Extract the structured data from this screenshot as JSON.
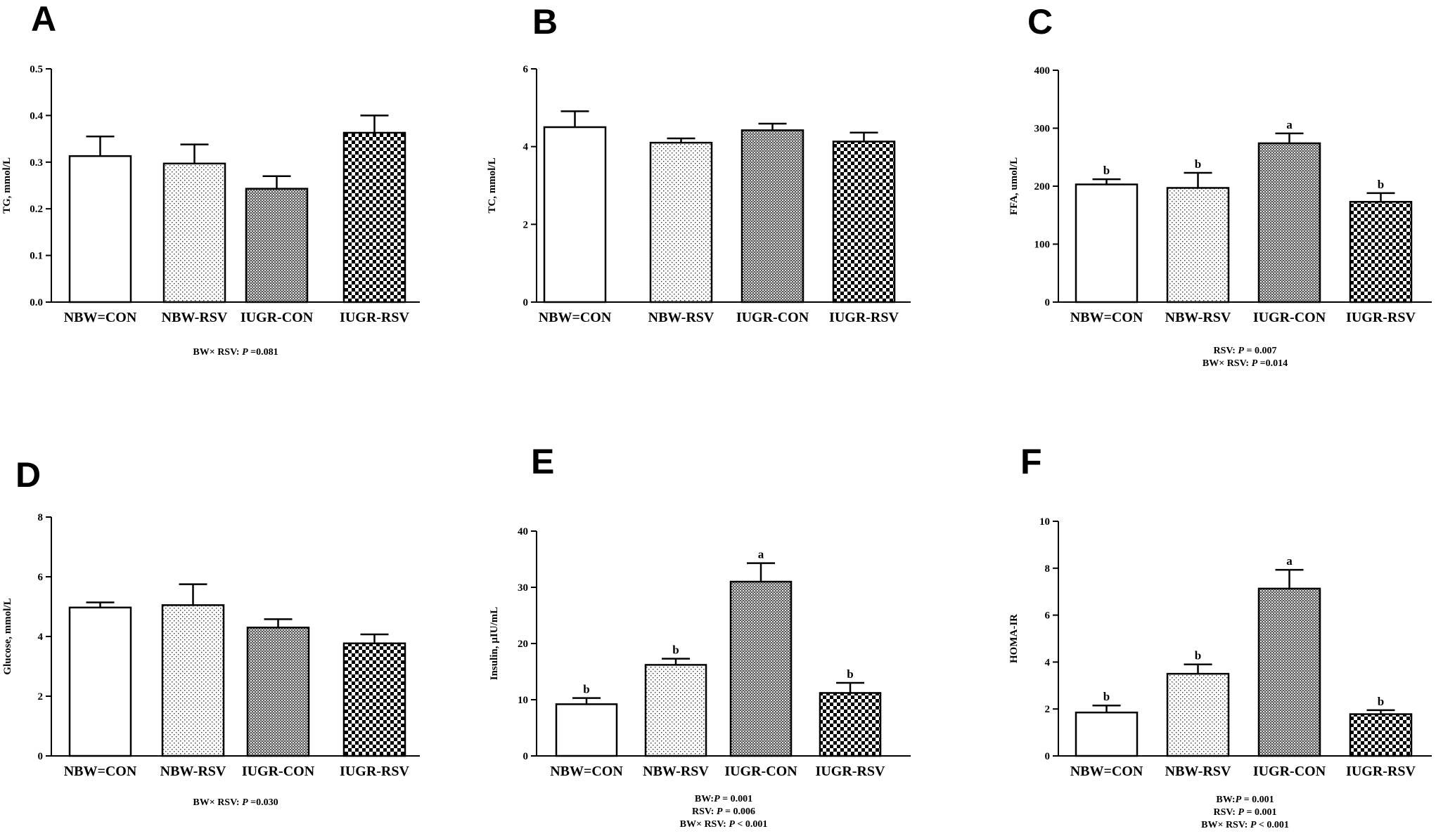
{
  "panels": [
    {
      "letter": "A",
      "chart_data": {
        "type": "bar",
        "categories": [
          "NBW=CON",
          "NBW-RSV",
          "IUGR-CON",
          "IUGR-RSV"
        ],
        "values": [
          0.313,
          0.297,
          0.243,
          0.363
        ],
        "errors": [
          0.042,
          0.041,
          0.027,
          0.037
        ],
        "labels": [
          "",
          "",
          "",
          ""
        ],
        "ylabel": "TG, mmol/L",
        "ylim": [
          0,
          0.5
        ],
        "yticks": [
          "0.0",
          "0.1",
          "0.2",
          "0.3",
          "0.4",
          "0.5"
        ],
        "stats": [
          "BW× RSV: P =0.081"
        ]
      }
    },
    {
      "letter": "B",
      "chart_data": {
        "type": "bar",
        "categories": [
          "NBW=CON",
          "NBW-RSV",
          "IUGR-CON",
          "IUGR-RSV"
        ],
        "values": [
          4.5,
          4.1,
          4.42,
          4.13
        ],
        "errors": [
          0.41,
          0.11,
          0.17,
          0.23
        ],
        "labels": [
          "",
          "",
          "",
          ""
        ],
        "ylabel": "TC, mmol/L",
        "ylim": [
          0,
          6
        ],
        "yticks": [
          "0",
          "2",
          "4",
          "6"
        ],
        "stats": []
      }
    },
    {
      "letter": "C",
      "chart_data": {
        "type": "bar",
        "categories": [
          "NBW=CON",
          "NBW-RSV",
          "IUGR-CON",
          "IUGR-RSV"
        ],
        "values": [
          203,
          197,
          274,
          173
        ],
        "errors": [
          9,
          26,
          17,
          15
        ],
        "labels": [
          "b",
          "b",
          "a",
          "b"
        ],
        "ylabel": "FFA, umol/L",
        "ylim": [
          0,
          400
        ],
        "yticks": [
          "0",
          "100",
          "200",
          "300",
          "400"
        ],
        "stats": [
          "RSV: P = 0.007",
          "BW× RSV: P =0.014"
        ]
      }
    },
    {
      "letter": "D",
      "chart_data": {
        "type": "bar",
        "categories": [
          "NBW=CON",
          "NBW-RSV",
          "IUGR-CON",
          "IUGR-RSV"
        ],
        "values": [
          4.97,
          5.05,
          4.3,
          3.77
        ],
        "errors": [
          0.17,
          0.7,
          0.28,
          0.3
        ],
        "labels": [
          "",
          "",
          "",
          ""
        ],
        "ylabel": "Glucose, mmol/L",
        "ylim": [
          0,
          8
        ],
        "yticks": [
          "0",
          "2",
          "4",
          "6",
          "8"
        ],
        "stats": [
          "BW× RSV: P =0.030"
        ]
      }
    },
    {
      "letter": "E",
      "chart_data": {
        "type": "bar",
        "categories": [
          "NBW=CON",
          "NBW-RSV",
          "IUGR-CON",
          "IUGR-RSV"
        ],
        "values": [
          9.2,
          16.2,
          31.0,
          11.2
        ],
        "errors": [
          1.1,
          1.1,
          3.3,
          1.8
        ],
        "labels": [
          "b",
          "b",
          "a",
          "b"
        ],
        "ylabel": "Insulin, µIU/mL",
        "ylim": [
          0,
          40
        ],
        "yticks": [
          "0",
          "10",
          "20",
          "30",
          "40"
        ],
        "stats": [
          "BW:P = 0.001",
          "RSV: P = 0.006",
          "BW× RSV: P < 0.001"
        ]
      }
    },
    {
      "letter": "F",
      "chart_data": {
        "type": "bar",
        "categories": [
          "NBW=CON",
          "NBW-RSV",
          "IUGR-CON",
          "IUGR-RSV"
        ],
        "values": [
          1.85,
          3.5,
          7.13,
          1.78
        ],
        "errors": [
          0.3,
          0.4,
          0.8,
          0.17
        ],
        "labels": [
          "b",
          "b",
          "a",
          "b"
        ],
        "ylabel": "HOMA-IR",
        "ylim": [
          0,
          10
        ],
        "yticks": [
          "0",
          "2",
          "4",
          "6",
          "8",
          "10"
        ],
        "stats": [
          "BW:P = 0.001",
          "RSV: P = 0.001",
          "BW× RSV: P < 0.001"
        ]
      }
    }
  ]
}
